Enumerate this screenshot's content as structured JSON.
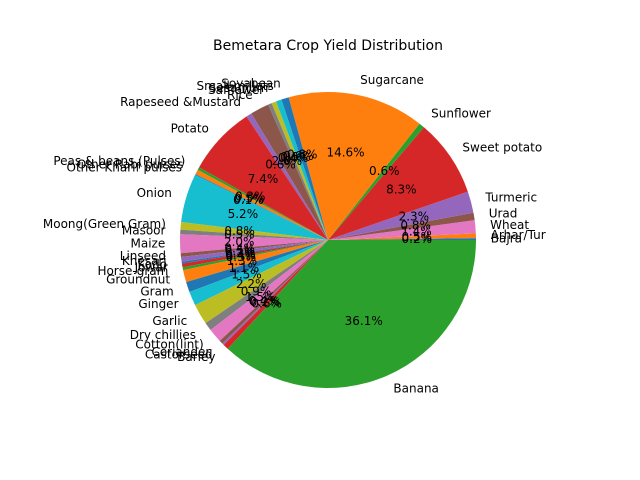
{
  "chart_data": {
    "type": "pie",
    "title": "Bemetara Crop Yield Distribution",
    "start_angle_deg": 0,
    "direction": "counterclockwise",
    "slices": [
      {
        "label": "Bajra",
        "pct": 0.2,
        "pct_label": "0.2%",
        "color": "#1f77b4"
      },
      {
        "label": "Arhar/Tur",
        "pct": 0.5,
        "pct_label": "0.5%",
        "color": "#ff7f0e"
      },
      {
        "label": "Wheat",
        "pct": 1.4,
        "pct_label": "1.4%",
        "color": "#e377c2"
      },
      {
        "label": "Urad",
        "pct": 0.8,
        "pct_label": "0.8%",
        "color": "#8c564b"
      },
      {
        "label": "Turmeric",
        "pct": 2.3,
        "pct_label": "2.3%",
        "color": "#9467bd"
      },
      {
        "label": "Sweet potato",
        "pct": 8.3,
        "pct_label": "8.3%",
        "color": "#d62728"
      },
      {
        "label": "Sunflower",
        "pct": 0.6,
        "pct_label": "0.6%",
        "color": "#2ca02c"
      },
      {
        "label": "Sugarcane",
        "pct": 14.6,
        "pct_label": "14.6%",
        "color": "#ff7f0e"
      },
      {
        "label": "Soyabean",
        "pct": 0.8,
        "pct_label": "0.8%",
        "color": "#1f77b4"
      },
      {
        "label": "Small millets",
        "pct": 0.6,
        "pct_label": "0.6%",
        "color": "#17becf"
      },
      {
        "label": "Sesamum",
        "pct": 0.5,
        "pct_label": "0.5%",
        "color": "#bcbd22"
      },
      {
        "label": "Safflower",
        "pct": 0.4,
        "pct_label": "0.4%",
        "color": "#7f7f7f"
      },
      {
        "label": "Rice",
        "pct": 2.0,
        "pct_label": "2.0%",
        "color": "#8c564b"
      },
      {
        "label": "Rapeseed &Mustard",
        "pct": 0.6,
        "pct_label": "0.6%",
        "color": "#9467bd"
      },
      {
        "label": "Potato",
        "pct": 7.4,
        "pct_label": "7.4%",
        "color": "#d62728"
      },
      {
        "label": "Peas & beans (Pulses)",
        "pct": 0.3,
        "pct_label": "0.3%",
        "color": "#2ca02c"
      },
      {
        "label": "Other Rabi pulses",
        "pct": 0.5,
        "pct_label": "0.5%",
        "color": "#ff7f0e"
      },
      {
        "label": "Other Kharif pulses",
        "pct": 0.1,
        "pct_label": "0.1%",
        "color": "#1f77b4"
      },
      {
        "label": "Onion",
        "pct": 5.2,
        "pct_label": "5.2%",
        "color": "#17becf"
      },
      {
        "label": "Moong(Green Gram)",
        "pct": 0.8,
        "pct_label": "0.8%",
        "color": "#bcbd22"
      },
      {
        "label": "Masoor",
        "pct": 0.5,
        "pct_label": "0.5%",
        "color": "#7f7f7f"
      },
      {
        "label": "Maize",
        "pct": 2.0,
        "pct_label": "2.0%",
        "color": "#e377c2"
      },
      {
        "label": "Linseed",
        "pct": 0.4,
        "pct_label": "0.4%",
        "color": "#8c564b"
      },
      {
        "label": "Khesari",
        "pct": 0.5,
        "pct_label": "0.5%",
        "color": "#9467bd"
      },
      {
        "label": "Kodo",
        "pct": 0.2,
        "pct_label": "0.2%",
        "color": "#1f77b4"
      },
      {
        "label": "Jowar",
        "pct": 0.4,
        "pct_label": "0.4%",
        "color": "#d62728"
      },
      {
        "label": "Horse-gram",
        "pct": 0.3,
        "pct_label": "0.3%",
        "color": "#2ca02c"
      },
      {
        "label": "Groundnut",
        "pct": 1.3,
        "pct_label": "1.3%",
        "color": "#ff7f0e"
      },
      {
        "label": "Gram",
        "pct": 1.1,
        "pct_label": "1.1%",
        "color": "#1f77b4"
      },
      {
        "label": "Ginger",
        "pct": 1.5,
        "pct_label": "1.5%",
        "color": "#17becf"
      },
      {
        "label": "Garlic",
        "pct": 2.2,
        "pct_label": "2.2%",
        "color": "#bcbd22"
      },
      {
        "label": "Dry chillies",
        "pct": 0.9,
        "pct_label": "0.9%",
        "color": "#7f7f7f"
      },
      {
        "label": "Cotton(lint)",
        "pct": 1.5,
        "pct_label": "1.5%",
        "color": "#e377c2"
      },
      {
        "label": "Coriander",
        "pct": 0.4,
        "pct_label": "0.4%",
        "color": "#8c564b"
      },
      {
        "label": "Castorseed",
        "pct": 0.2,
        "pct_label": "0.2%",
        "color": "#9467bd"
      },
      {
        "label": "Barley",
        "pct": 0.6,
        "pct_label": "0.6%",
        "color": "#d62728"
      },
      {
        "label": "Banana",
        "pct": 36.1,
        "pct_label": "36.1%",
        "color": "#2ca02c"
      }
    ]
  }
}
